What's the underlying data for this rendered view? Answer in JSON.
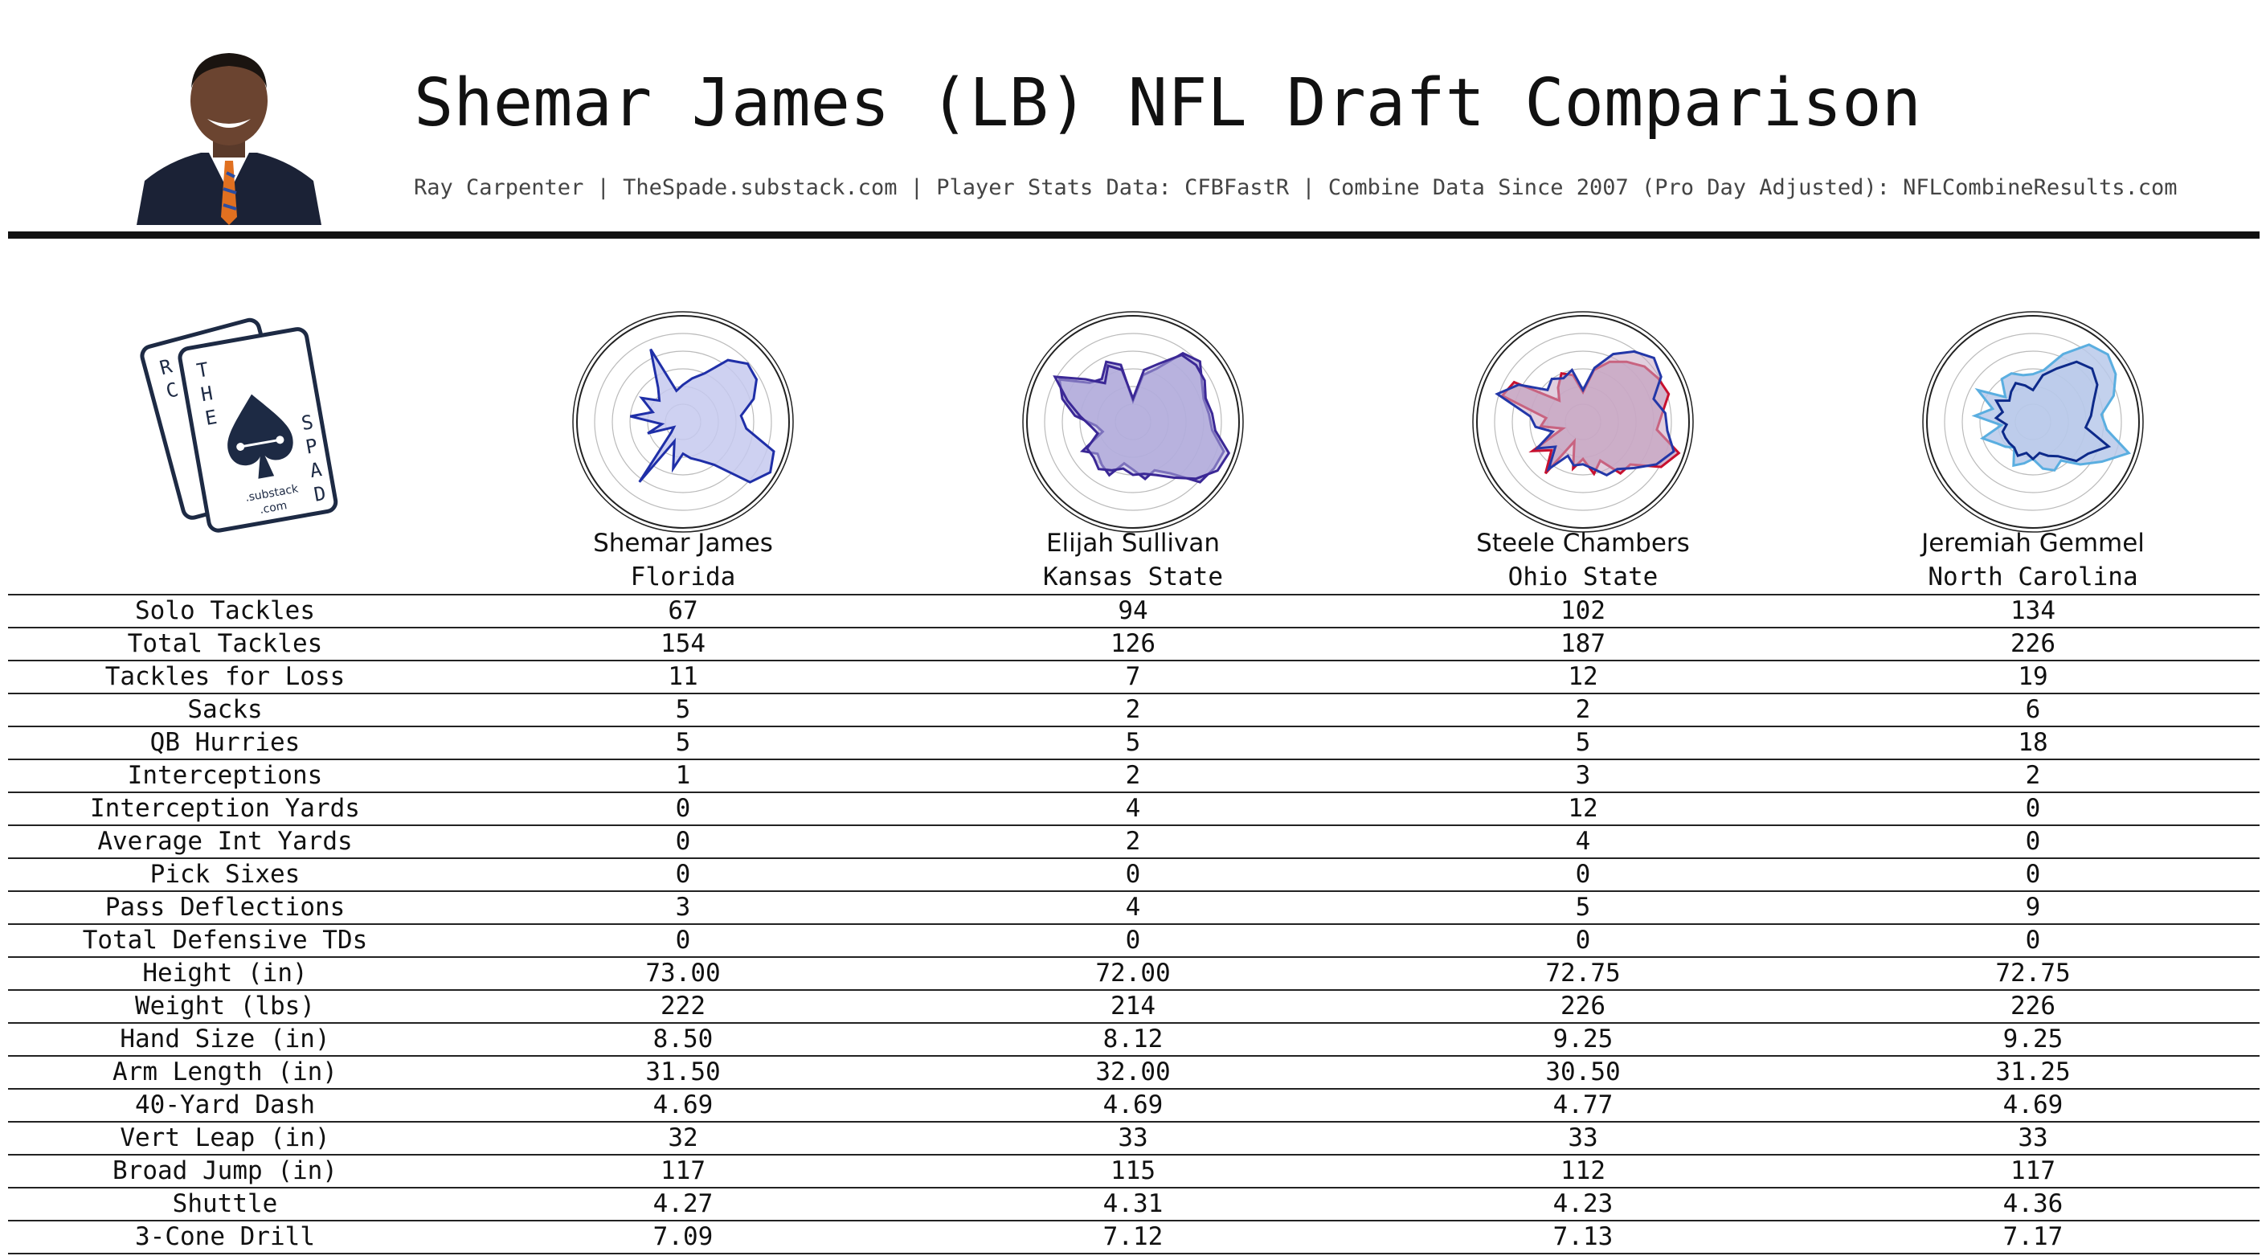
{
  "header": {
    "title": "Shemar James (LB) NFL Draft Comparison",
    "subtitle": "Ray Carpenter | TheSpade.substack.com | Player Stats Data: CFBFastR | Combine Data Since 2007 (Pro Day Adjusted): NFLCombineResults.com"
  },
  "logo": {
    "card_letters": [
      "R",
      "C",
      "E",
      "T",
      "H",
      "E",
      "S",
      "P",
      "A",
      "D",
      "E"
    ],
    "substack_text": ".substack",
    "com_text": ".com",
    "color": "#1d2a44"
  },
  "players": [
    {
      "name": "Shemar James",
      "school": "Florida",
      "color": "#1f2fa8",
      "fill": "#c5c9ee"
    },
    {
      "name": "Elijah Sullivan",
      "school": "Kansas State",
      "color": "#3b2896",
      "fill": "#b3addc"
    },
    {
      "name": "Steele Chambers",
      "school": "Ohio State",
      "color": "#c8102e",
      "fill": "#c9a8c4"
    },
    {
      "name": "Jeremiah Gemmel",
      "school": "North Carolina",
      "color": "#5aaee0",
      "fill": "#b8c9ea"
    }
  ],
  "chart_data": {
    "type": "table",
    "columns": [
      "Shemar James",
      "Elijah Sullivan",
      "Steele Chambers",
      "Jeremiah Gemmel"
    ],
    "rows": [
      {
        "label": "Solo Tackles",
        "values": [
          "67",
          "94",
          "102",
          "134"
        ]
      },
      {
        "label": "Total Tackles",
        "values": [
          "154",
          "126",
          "187",
          "226"
        ]
      },
      {
        "label": "Tackles for Loss",
        "values": [
          "11",
          "7",
          "12",
          "19"
        ]
      },
      {
        "label": "Sacks",
        "values": [
          "5",
          "2",
          "2",
          "6"
        ]
      },
      {
        "label": "QB Hurries",
        "values": [
          "5",
          "5",
          "5",
          "18"
        ]
      },
      {
        "label": "Interceptions",
        "values": [
          "1",
          "2",
          "3",
          "2"
        ]
      },
      {
        "label": "Interception Yards",
        "values": [
          "0",
          "4",
          "12",
          "0"
        ]
      },
      {
        "label": "Average Int Yards",
        "values": [
          "0",
          "2",
          "4",
          "0"
        ]
      },
      {
        "label": "Pick Sixes",
        "values": [
          "0",
          "0",
          "0",
          "0"
        ]
      },
      {
        "label": "Pass Deflections",
        "values": [
          "3",
          "4",
          "5",
          "9"
        ]
      },
      {
        "label": "Total Defensive TDs",
        "values": [
          "0",
          "0",
          "0",
          "0"
        ]
      },
      {
        "label": "Height (in)",
        "values": [
          "73.00",
          "72.00",
          "72.75",
          "72.75"
        ]
      },
      {
        "label": "Weight (lbs)",
        "values": [
          "222",
          "214",
          "226",
          "226"
        ]
      },
      {
        "label": "Hand Size (in)",
        "values": [
          "8.50",
          "8.12",
          "9.25",
          "9.25"
        ]
      },
      {
        "label": "Arm Length (in)",
        "values": [
          "31.50",
          "32.00",
          "30.50",
          "31.25"
        ]
      },
      {
        "label": "40-Yard Dash",
        "values": [
          "4.69",
          "4.69",
          "4.77",
          "4.69"
        ]
      },
      {
        "label": "Vert Leap (in)",
        "values": [
          "32",
          "33",
          "33",
          "33"
        ]
      },
      {
        "label": "Broad Jump (in)",
        "values": [
          "117",
          "115",
          "112",
          "117"
        ]
      },
      {
        "label": "Shuttle",
        "values": [
          "4.27",
          "4.31",
          "4.23",
          "4.36"
        ]
      },
      {
        "label": "3-Cone Drill",
        "values": [
          "7.09",
          "7.12",
          "7.13",
          "7.17"
        ]
      }
    ],
    "radars": [
      {
        "type": "radar",
        "player": "Shemar James",
        "rlim": [
          0,
          1
        ],
        "grid_rings": 6,
        "series": [
          {
            "values": [
              0.35,
              0.42,
              0.5,
              0.72,
              0.82,
              0.8,
              0.7,
              0.55,
              0.6,
              0.9,
              0.95,
              0.85,
              0.5,
              0.4,
              0.35,
              0.3,
              0.45,
              0.2,
              0.7,
              0.15,
              0.1,
              0.35,
              0.2,
              0.5,
              0.3,
              0.45,
              0.3,
              0.4,
              0.75,
              0.3
            ]
          }
        ]
      },
      {
        "type": "radar",
        "player": "Elijah Sullivan",
        "rlim": [
          0,
          1
        ],
        "grid_rings": 6,
        "series": [
          {
            "values": [
              0.2,
              0.45,
              0.55,
              0.8,
              0.85,
              0.75,
              0.7,
              0.72,
              0.75,
              0.9,
              0.88,
              0.85,
              0.6,
              0.5,
              0.55,
              0.45,
              0.4,
              0.55,
              0.5,
              0.45,
              0.55,
              0.3,
              0.35,
              0.55,
              0.7,
              0.8,
              0.55,
              0.5,
              0.62,
              0.55
            ]
          },
          {
            "values": [
              0.22,
              0.5,
              0.6,
              0.78,
              0.8,
              0.78,
              0.72,
              0.75,
              0.78,
              0.95,
              0.92,
              0.8,
              0.65,
              0.55,
              0.5,
              0.5,
              0.45,
              0.5,
              0.55,
              0.5,
              0.5,
              0.35,
              0.4,
              0.5,
              0.65,
              0.85,
              0.6,
              0.45,
              0.58,
              0.5
            ]
          }
        ]
      },
      {
        "type": "radar",
        "player": "Steele Chambers",
        "rlim": [
          0,
          1
        ],
        "grid_rings": 6,
        "series": [
          {
            "values": [
              0.28,
              0.5,
              0.62,
              0.7,
              0.78,
              0.82,
              0.85,
              0.75,
              0.7,
              0.95,
              0.85,
              0.6,
              0.6,
              0.4,
              0.5,
              0.35,
              0.45,
              0.2,
              0.6,
              0.4,
              0.55,
              0.2,
              0.4,
              0.35,
              0.8,
              0.75,
              0.3,
              0.4,
              0.5,
              0.45
            ]
          },
          {
            "values": [
              0.3,
              0.52,
              0.7,
              0.82,
              0.9,
              0.85,
              0.7,
              0.78,
              0.8,
              0.9,
              0.8,
              0.65,
              0.55,
              0.55,
              0.45,
              0.4,
              0.42,
              0.35,
              0.55,
              0.35,
              0.5,
              0.3,
              0.45,
              0.5,
              0.85,
              0.7,
              0.45,
              0.5,
              0.45,
              0.5
            ]
          }
        ]
      },
      {
        "type": "radar",
        "player": "Jeremiah Gemmel",
        "rlim": [
          0,
          1
        ],
        "grid_rings": 6,
        "series": [
          {
            "values": [
              0.45,
              0.5,
              0.7,
              0.9,
              0.95,
              0.9,
              0.8,
              0.65,
              0.7,
              0.95,
              0.75,
              0.6,
              0.45,
              0.5,
              0.45,
              0.35,
              0.4,
              0.45,
              0.3,
              0.35,
              0.4,
              0.5,
              0.3,
              0.55,
              0.4,
              0.6,
              0.35,
              0.5,
              0.5,
              0.45
            ]
          },
          {
            "values": [
              0.3,
              0.45,
              0.55,
              0.7,
              0.75,
              0.7,
              0.6,
              0.55,
              0.5,
              0.75,
              0.6,
              0.55,
              0.4,
              0.35,
              0.3,
              0.35,
              0.3,
              0.35,
              0.3,
              0.3,
              0.3,
              0.3,
              0.25,
              0.35,
              0.3,
              0.4,
              0.3,
              0.35,
              0.4,
              0.35
            ]
          }
        ]
      }
    ]
  }
}
